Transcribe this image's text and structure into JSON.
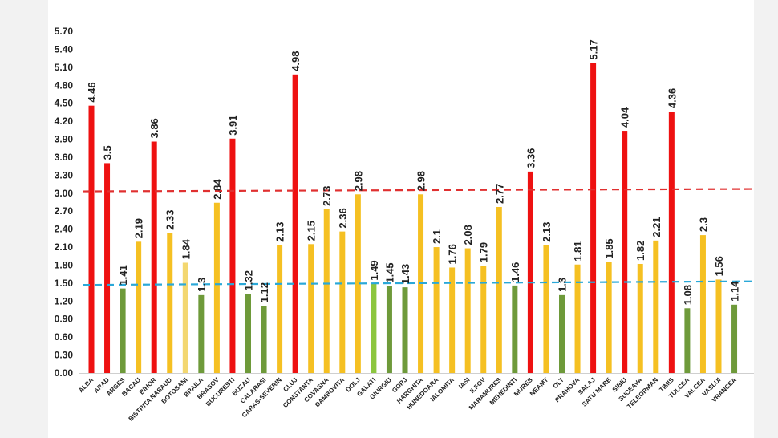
{
  "chart_data": {
    "type": "bar",
    "title": "",
    "xlabel": "",
    "ylabel": "",
    "ylim": [
      0,
      5.7
    ],
    "yticks": [
      "0.00",
      "0.30",
      "0.60",
      "0.90",
      "1.20",
      "1.50",
      "1.80",
      "2.10",
      "2.40",
      "2.70",
      "3.00",
      "3.30",
      "3.60",
      "3.90",
      "4.20",
      "4.50",
      "4.80",
      "5.10",
      "5.40",
      "5.70"
    ],
    "grid": false,
    "legend": "none",
    "categories": [
      "ALBA",
      "ARAD",
      "ARGES",
      "BACAU",
      "BIHOR",
      "BISTRITA NASAUD",
      "BOTOSANI",
      "BRAILA",
      "BRASOV",
      "BUCURESTI",
      "BUZAU",
      "CALARASI",
      "CARAS-SEVERIN",
      "CLUJ",
      "CONSTANTA",
      "COVASNA",
      "DAMBOVITA",
      "DOLJ",
      "GALATI",
      "GIURGIU",
      "GORJ",
      "HARGHITA",
      "HUNEDOARA",
      "IALOMITA",
      "IASI",
      "ILFOV",
      "MARAMURES",
      "MEHEDINTI",
      "MURES",
      "NEAMT",
      "OLT",
      "PRAHOVA",
      "SALAJ",
      "SATU MARE",
      "SIBIU",
      "SUCEAVA",
      "TELEORMAN",
      "TIMIS",
      "TULCEA",
      "VALCEA",
      "VASLUI",
      "VRANCEA"
    ],
    "values": [
      4.46,
      3.5,
      1.41,
      2.19,
      3.86,
      2.33,
      1.84,
      1.3,
      2.84,
      3.91,
      1.32,
      1.12,
      2.13,
      4.98,
      2.15,
      2.73,
      2.36,
      2.98,
      1.49,
      1.45,
      1.43,
      2.98,
      2.1,
      1.76,
      2.08,
      1.79,
      2.77,
      1.46,
      3.36,
      2.13,
      1.3,
      1.81,
      5.17,
      1.85,
      4.04,
      1.82,
      2.21,
      4.36,
      1.08,
      2.3,
      1.56,
      1.14
    ],
    "data_labels": [
      "4.46",
      "3.5",
      "1.41",
      "2.19",
      "3.86",
      "2.33",
      "1.84",
      "1.3",
      "2.84",
      "3.91",
      "1.32",
      "1.12",
      "2.13",
      "4.98",
      "2.15",
      "2.73",
      "2.36",
      "2.98",
      "1.49",
      "1.45",
      "1.43",
      "2.98",
      "2.1",
      "1.76",
      "2.08",
      "1.79",
      "2.77",
      "1.46",
      "3.36",
      "2.13",
      "1.3",
      "1.81",
      "5.17",
      "1.85",
      "4.04",
      "1.82",
      "2.21",
      "4.36",
      "1.08",
      "2.3",
      "1.56",
      "1.14"
    ],
    "bar_colors": [
      "red",
      "red",
      "green",
      "yellow",
      "red",
      "yellow",
      "lightyellow",
      "green",
      "yellow",
      "red",
      "green",
      "green",
      "yellow",
      "red",
      "yellow",
      "yellow",
      "yellow",
      "yellow",
      "lightgreen",
      "green",
      "green",
      "yellow",
      "yellow",
      "yellow",
      "yellow",
      "yellow",
      "yellow",
      "green",
      "red",
      "yellow",
      "green",
      "yellow",
      "red",
      "yellow",
      "red",
      "yellow",
      "yellow",
      "red",
      "green",
      "yellow",
      "yellow",
      "green"
    ],
    "colors": {
      "red": "#ee1111",
      "yellow": "#f5c022",
      "lightyellow": "#f3d770",
      "green": "#6e9a3a",
      "lightgreen": "#8cc63f"
    },
    "reference_lines": [
      {
        "value": 3.03,
        "value_end": 3.07,
        "color": "#e03030",
        "style": "dashed"
      },
      {
        "value": 1.47,
        "value_end": 1.53,
        "color": "#2aa8d8",
        "style": "dashed"
      }
    ]
  }
}
